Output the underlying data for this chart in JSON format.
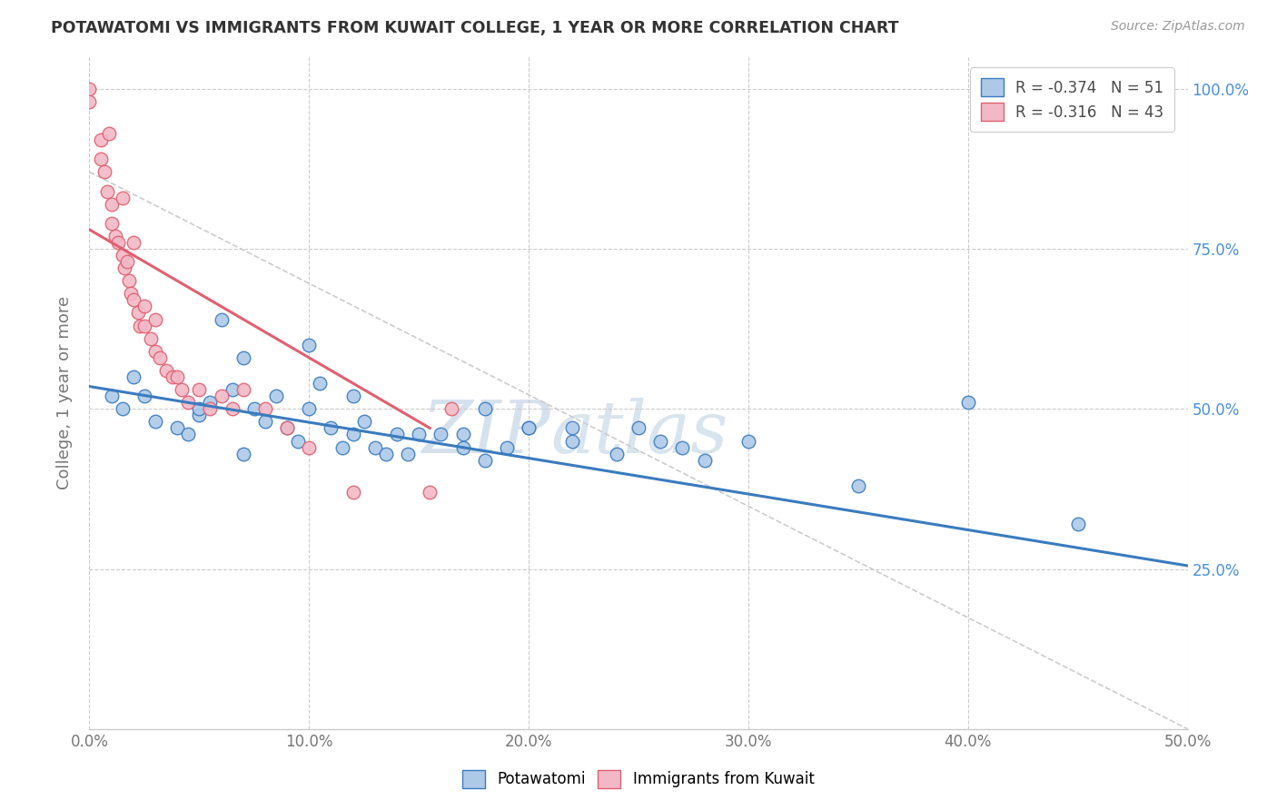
{
  "title": "POTAWATOMI VS IMMIGRANTS FROM KUWAIT COLLEGE, 1 YEAR OR MORE CORRELATION CHART",
  "source": "Source: ZipAtlas.com",
  "ylabel": "College, 1 year or more",
  "xlim": [
    0.0,
    0.5
  ],
  "ylim": [
    0.0,
    1.05
  ],
  "xticks": [
    0.0,
    0.1,
    0.2,
    0.3,
    0.4,
    0.5
  ],
  "yticks": [
    0.25,
    0.5,
    0.75,
    1.0
  ],
  "xticklabels": [
    "0.0%",
    "10.0%",
    "20.0%",
    "30.0%",
    "40.0%",
    "50.0%"
  ],
  "yticklabels_right": [
    "25.0%",
    "50.0%",
    "75.0%",
    "100.0%"
  ],
  "blue_R": "-0.374",
  "blue_N": "51",
  "pink_R": "-0.316",
  "pink_N": "43",
  "blue_color": "#adc9e8",
  "pink_color": "#f2b8c6",
  "blue_line_color": "#3a7bbf",
  "pink_line_color": "#e06070",
  "grid_color": "#cccccc",
  "blue_line_x0": 0.0,
  "blue_line_y0": 0.535,
  "blue_line_x1": 0.5,
  "blue_line_y1": 0.255,
  "pink_line_x0": 0.0,
  "pink_line_y0": 0.78,
  "pink_line_x1": 0.155,
  "pink_line_y1": 0.47,
  "dash_line_x0": 0.0,
  "dash_line_y0": 0.87,
  "dash_line_x1": 0.5,
  "dash_line_y1": 0.0,
  "blue_scatter_x": [
    0.01,
    0.015,
    0.02,
    0.025,
    0.03,
    0.04,
    0.045,
    0.05,
    0.055,
    0.06,
    0.065,
    0.07,
    0.075,
    0.08,
    0.085,
    0.09,
    0.095,
    0.1,
    0.105,
    0.11,
    0.115,
    0.12,
    0.125,
    0.13,
    0.135,
    0.14,
    0.145,
    0.15,
    0.16,
    0.17,
    0.18,
    0.19,
    0.2,
    0.22,
    0.24,
    0.26,
    0.28,
    0.3,
    0.35,
    0.4,
    0.45,
    0.25,
    0.27,
    0.22,
    0.2,
    0.18,
    0.17,
    0.12,
    0.1,
    0.07,
    0.05
  ],
  "blue_scatter_y": [
    0.52,
    0.5,
    0.55,
    0.52,
    0.48,
    0.47,
    0.46,
    0.49,
    0.51,
    0.64,
    0.53,
    0.58,
    0.5,
    0.48,
    0.52,
    0.47,
    0.45,
    0.6,
    0.54,
    0.47,
    0.44,
    0.46,
    0.48,
    0.44,
    0.43,
    0.46,
    0.43,
    0.46,
    0.46,
    0.44,
    0.42,
    0.44,
    0.47,
    0.45,
    0.43,
    0.45,
    0.42,
    0.45,
    0.38,
    0.51,
    0.32,
    0.47,
    0.44,
    0.47,
    0.47,
    0.5,
    0.46,
    0.52,
    0.5,
    0.43,
    0.5
  ],
  "pink_scatter_x": [
    0.0,
    0.0,
    0.005,
    0.005,
    0.007,
    0.008,
    0.009,
    0.01,
    0.01,
    0.012,
    0.013,
    0.015,
    0.015,
    0.016,
    0.017,
    0.018,
    0.019,
    0.02,
    0.02,
    0.022,
    0.023,
    0.025,
    0.025,
    0.028,
    0.03,
    0.03,
    0.032,
    0.035,
    0.038,
    0.04,
    0.042,
    0.045,
    0.05,
    0.055,
    0.06,
    0.065,
    0.07,
    0.08,
    0.09,
    0.1,
    0.12,
    0.155,
    0.165
  ],
  "pink_scatter_y": [
    1.0,
    0.98,
    0.92,
    0.89,
    0.87,
    0.84,
    0.93,
    0.82,
    0.79,
    0.77,
    0.76,
    0.83,
    0.74,
    0.72,
    0.73,
    0.7,
    0.68,
    0.76,
    0.67,
    0.65,
    0.63,
    0.66,
    0.63,
    0.61,
    0.64,
    0.59,
    0.58,
    0.56,
    0.55,
    0.55,
    0.53,
    0.51,
    0.53,
    0.5,
    0.52,
    0.5,
    0.53,
    0.5,
    0.47,
    0.44,
    0.37,
    0.37,
    0.5
  ],
  "background_color": "#ffffff"
}
